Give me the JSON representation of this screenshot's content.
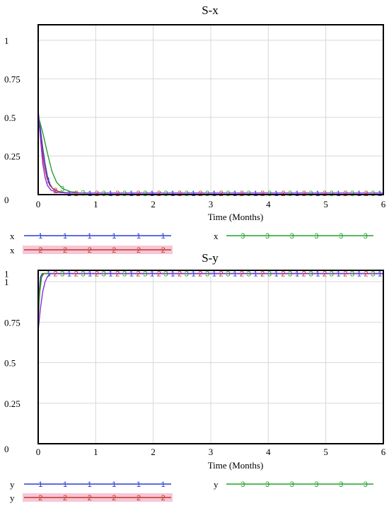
{
  "colors": {
    "s1": "#2a3fd6",
    "s2": "#c0392b",
    "s3": "#22a02a",
    "s4": "#8a2be2",
    "grid": "#d8d8d8",
    "highlight": "#f7c6d6"
  },
  "chart_data": [
    {
      "type": "line",
      "title": "S-x",
      "xlabel": "Time  (Months)",
      "xlim": [
        0,
        6
      ],
      "ylim": [
        0,
        1.1
      ],
      "x_ticks": [
        0,
        1,
        2,
        3,
        4,
        5,
        6
      ],
      "y_ticks": [
        {
          "value": 0,
          "label": "0"
        },
        {
          "value": 0.25,
          "label": "0.25"
        },
        {
          "value": 0.5,
          "label": "0.5"
        },
        {
          "value": 0.75,
          "label": "0.75"
        },
        {
          "value": 1,
          "label": "1"
        }
      ],
      "series": [
        {
          "name": "x",
          "marker": "1",
          "color": "#2a3fd6",
          "points": [
            [
              0,
              0.53
            ],
            [
              0.04,
              0.42
            ],
            [
              0.08,
              0.3
            ],
            [
              0.12,
              0.2
            ],
            [
              0.16,
              0.12
            ],
            [
              0.2,
              0.07
            ],
            [
              0.25,
              0.04
            ],
            [
              0.35,
              0.02
            ],
            [
              0.5,
              0.01
            ],
            [
              1,
              0.01
            ],
            [
              6,
              0.01
            ]
          ]
        },
        {
          "name": "x",
          "marker": "2",
          "color": "#c0392b",
          "points": [
            [
              0,
              0.5
            ],
            [
              0.05,
              0.35
            ],
            [
              0.1,
              0.2
            ],
            [
              0.15,
              0.11
            ],
            [
              0.2,
              0.06
            ],
            [
              0.28,
              0.03
            ],
            [
              0.4,
              0.015
            ],
            [
              0.6,
              0.01
            ],
            [
              1,
              0.01
            ],
            [
              6,
              0.01
            ]
          ]
        },
        {
          "name": "x",
          "marker": "3",
          "color": "#22a02a",
          "points": [
            [
              0,
              0.51
            ],
            [
              0.08,
              0.4
            ],
            [
              0.16,
              0.27
            ],
            [
              0.24,
              0.15
            ],
            [
              0.32,
              0.08
            ],
            [
              0.42,
              0.04
            ],
            [
              0.55,
              0.02
            ],
            [
              0.7,
              0.012
            ],
            [
              1,
              0.01
            ],
            [
              6,
              0.01
            ]
          ]
        },
        {
          "name": "",
          "marker": "",
          "color": "#8a2be2",
          "points": [
            [
              0,
              0.55
            ],
            [
              0.04,
              0.36
            ],
            [
              0.08,
              0.2
            ],
            [
              0.12,
              0.11
            ],
            [
              0.16,
              0.06
            ],
            [
              0.22,
              0.03
            ],
            [
              0.32,
              0.015
            ],
            [
              0.5,
              0.01
            ],
            [
              1,
              0.01
            ],
            [
              6,
              0.01
            ]
          ]
        }
      ],
      "legend": [
        {
          "label": "x",
          "marker": "1",
          "color": "#2a3fd6",
          "highlight": false
        },
        {
          "label": "x",
          "marker": "2",
          "color": "#c0392b",
          "highlight": true
        },
        {
          "label": "x",
          "marker": "3",
          "color": "#22a02a",
          "highlight": false
        }
      ]
    },
    {
      "type": "line",
      "title": "S-y",
      "xlabel": "Time  (Months)",
      "xlim": [
        0,
        6
      ],
      "ylim": [
        0,
        1.07
      ],
      "x_ticks": [
        0,
        1,
        2,
        3,
        4,
        5,
        6
      ],
      "y_ticks": [
        {
          "value": 0,
          "label": "0"
        },
        {
          "value": 0.25,
          "label": "0.25"
        },
        {
          "value": 0.5,
          "label": "0.5"
        },
        {
          "value": 0.75,
          "label": "0.75"
        },
        {
          "value": 1,
          "label": "1"
        },
        {
          "value": 1.05,
          "label": "1"
        }
      ],
      "series": [
        {
          "name": "y",
          "marker": "1",
          "color": "#2a3fd6",
          "points": [
            [
              0,
              0.8
            ],
            [
              0.02,
              0.95
            ],
            [
              0.04,
              1.03
            ],
            [
              0.07,
              1.05
            ],
            [
              6,
              1.05
            ]
          ]
        },
        {
          "name": "y",
          "marker": "2",
          "color": "#c0392b",
          "points": [
            [
              0,
              0.75
            ],
            [
              0.02,
              0.92
            ],
            [
              0.05,
              1.02
            ],
            [
              0.08,
              1.05
            ],
            [
              6,
              1.05
            ]
          ]
        },
        {
          "name": "y",
          "marker": "3",
          "color": "#22a02a",
          "points": [
            [
              0,
              0.78
            ],
            [
              0.03,
              0.94
            ],
            [
              0.06,
              1.03
            ],
            [
              0.1,
              1.05
            ],
            [
              6,
              1.05
            ]
          ]
        },
        {
          "name": "",
          "marker": "",
          "color": "#8a2be2",
          "points": [
            [
              0,
              0.7
            ],
            [
              0.04,
              0.84
            ],
            [
              0.08,
              0.94
            ],
            [
              0.12,
              1.0
            ],
            [
              0.16,
              1.03
            ],
            [
              0.22,
              1.05
            ],
            [
              6,
              1.05
            ]
          ]
        }
      ],
      "legend": [
        {
          "label": "y",
          "marker": "1",
          "color": "#2a3fd6",
          "highlight": false
        },
        {
          "label": "y",
          "marker": "2",
          "color": "#c0392b",
          "highlight": true
        },
        {
          "label": "y",
          "marker": "3",
          "color": "#22a02a",
          "highlight": false
        }
      ]
    }
  ]
}
